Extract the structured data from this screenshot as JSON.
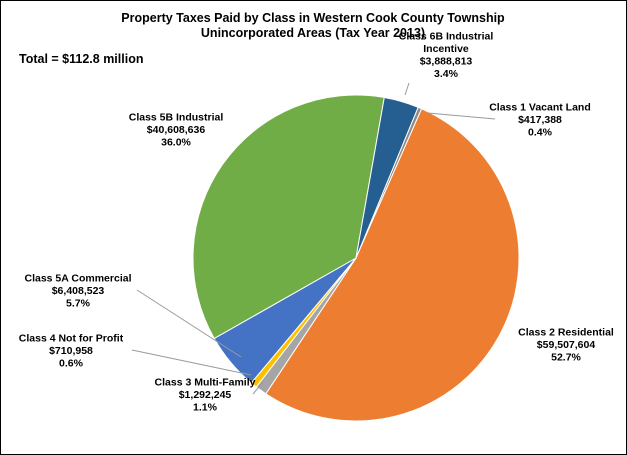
{
  "chart_data": {
    "type": "pie",
    "title": "Property Taxes Paid by Class in Western Cook County Township Unincorporated Areas (Tax Year 2013)",
    "title_lines": [
      "Property Taxes Paid by Class in Western Cook County Township",
      "Unincorporated Areas (Tax Year 2013)"
    ],
    "annotation": "Total = $112.8 million",
    "start_angle_deg": 22.4,
    "direction": "clockwise",
    "slices": [
      {
        "name": "Class 1 Vacant Land",
        "label_lines": [
          "Class 1 Vacant Land"
        ],
        "amount": "$417,388",
        "percent": "0.4%",
        "value": 417388,
        "color": "#8b8b8b"
      },
      {
        "name": "Class 2 Residential",
        "label_lines": [
          "Class 2 Residential"
        ],
        "amount": "$59,507,604",
        "percent": "52.7%",
        "value": 59507604,
        "color": "#ed7d31"
      },
      {
        "name": "Class 3 Multi-Family",
        "label_lines": [
          "Class 3 Multi-Family"
        ],
        "amount": "$1,292,245",
        "percent": "1.1%",
        "value": 1292245,
        "color": "#a5a5a5"
      },
      {
        "name": "Class 4 Not for Profit",
        "label_lines": [
          "Class 4 Not for Profit"
        ],
        "amount": "$710,958",
        "percent": "0.6%",
        "value": 710958,
        "color": "#ffc000"
      },
      {
        "name": "Class 5A Commercial",
        "label_lines": [
          "Class 5A Commercial"
        ],
        "amount": "$6,408,523",
        "percent": "5.7%",
        "value": 6408523,
        "color": "#4472c4"
      },
      {
        "name": "Class 5B Industrial",
        "label_lines": [
          "Class 5B Industrial"
        ],
        "amount": "$40,608,636",
        "percent": "36.0%",
        "value": 40608636,
        "color": "#70ad47"
      },
      {
        "name": "Class 6B Industrial Incentive",
        "label_lines": [
          "Class 6B Industrial",
          "Incentive"
        ],
        "amount": "$3,888,813",
        "percent": "3.4%",
        "value": 3888813,
        "color": "#255e91"
      }
    ]
  }
}
